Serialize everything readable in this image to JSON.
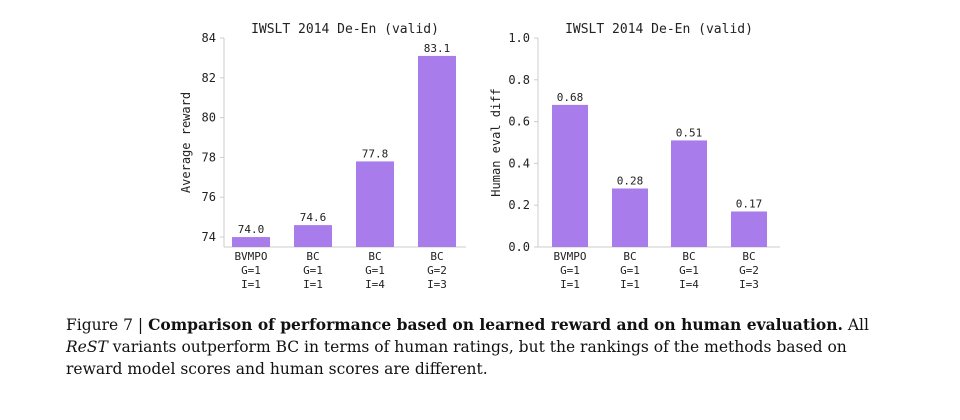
{
  "chart_data": [
    {
      "type": "bar",
      "title": "IWSLT 2014 De-En (valid)",
      "ylabel": "Average reward",
      "xlabel": "",
      "categories": [
        "BVMPO\nG=1\nI=1",
        "BC\nG=1\nI=1",
        "BC\nG=1\nI=4",
        "BC\nG=2\nI=3"
      ],
      "values": [
        74.0,
        74.6,
        77.8,
        83.1
      ],
      "value_labels": [
        "74.0",
        "74.6",
        "77.8",
        "83.1"
      ],
      "ylim": [
        73.5,
        84
      ],
      "yticks": [
        74,
        76,
        78,
        80,
        82,
        84
      ],
      "ytick_labels": [
        "74",
        "76",
        "78",
        "80",
        "82",
        "84"
      ],
      "grid": false,
      "color": "#a97cec"
    },
    {
      "type": "bar",
      "title": "IWSLT 2014 De-En (valid)",
      "ylabel": "Human eval diff",
      "xlabel": "",
      "categories": [
        "BVMPO\nG=1\nI=1",
        "BC\nG=1\nI=1",
        "BC\nG=1\nI=4",
        "BC\nG=2\nI=3"
      ],
      "values": [
        0.68,
        0.28,
        0.51,
        0.17
      ],
      "value_labels": [
        "0.68",
        "0.28",
        "0.51",
        "0.17"
      ],
      "ylim": [
        0.0,
        1.0
      ],
      "yticks": [
        0.0,
        0.2,
        0.4,
        0.6,
        0.8,
        1.0
      ],
      "ytick_labels": [
        "0.0",
        "0.2",
        "0.4",
        "0.6",
        "0.8",
        "1.0"
      ],
      "grid": false,
      "color": "#a97cec"
    }
  ],
  "caption": {
    "prefix": "Figure 7 | ",
    "bold": "Comparison of performance based on learned reward and on human evaluation.",
    "rest_1": " All ",
    "italic": "ReST",
    "rest_2": " variants outperform BC in terms of human ratings, but the rankings of the methods based on reward model scores and human scores are different."
  }
}
